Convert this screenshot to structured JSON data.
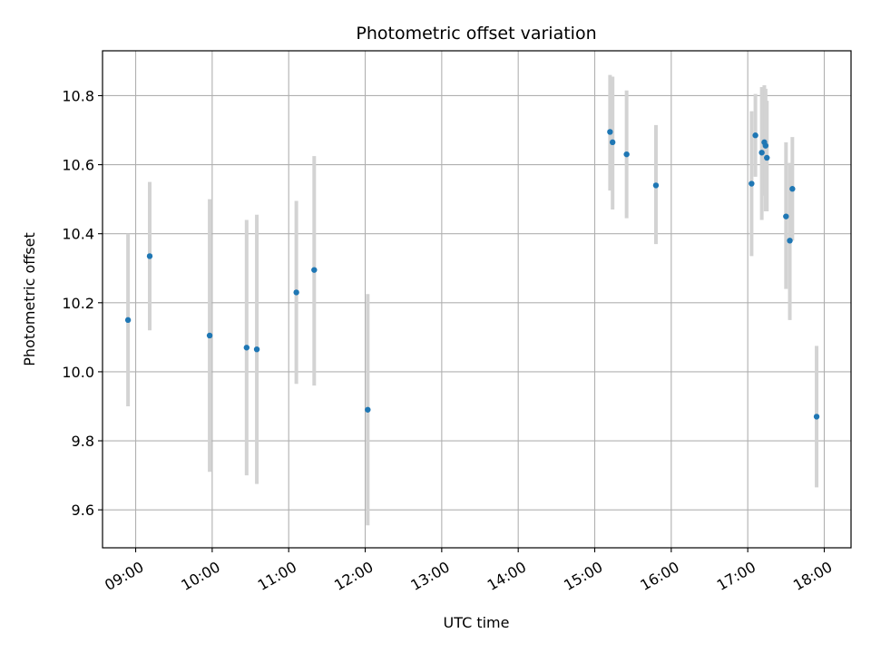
{
  "chart_data": {
    "type": "scatter",
    "title": "Photometric offset variation",
    "xlabel": "UTC time",
    "ylabel": "Photometric offset",
    "xlim": [
      "08:34",
      "18:21"
    ],
    "ylim": [
      9.49,
      10.93
    ],
    "grid": true,
    "x_ticks": [
      "09:00",
      "10:00",
      "11:00",
      "12:00",
      "13:00",
      "14:00",
      "15:00",
      "16:00",
      "17:00",
      "18:00"
    ],
    "y_ticks": [
      "9.6",
      "9.8",
      "10.0",
      "10.2",
      "10.4",
      "10.6",
      "10.8"
    ],
    "colors": {
      "points": "#1f77b4",
      "errorbars": "#d3d3d3",
      "grid": "#b0b0b0"
    },
    "points": [
      {
        "x": "08:54",
        "y": 10.15,
        "err": [
          9.9,
          10.4
        ]
      },
      {
        "x": "09:11",
        "y": 10.335,
        "err": [
          10.12,
          10.55
        ]
      },
      {
        "x": "09:58",
        "y": 10.105,
        "err": [
          9.71,
          10.5
        ]
      },
      {
        "x": "10:27",
        "y": 10.07,
        "err": [
          9.7,
          10.44
        ]
      },
      {
        "x": "10:35",
        "y": 10.065,
        "err": [
          9.675,
          10.455
        ]
      },
      {
        "x": "11:06",
        "y": 10.23,
        "err": [
          9.965,
          10.495
        ]
      },
      {
        "x": "11:20",
        "y": 10.295,
        "err": [
          9.96,
          10.625
        ]
      },
      {
        "x": "12:02",
        "y": 9.89,
        "err": [
          9.555,
          10.225
        ]
      },
      {
        "x": "15:12",
        "y": 10.695,
        "err": [
          10.525,
          10.86
        ]
      },
      {
        "x": "15:14",
        "y": 10.665,
        "err": [
          10.47,
          10.855
        ]
      },
      {
        "x": "15:25",
        "y": 10.63,
        "err": [
          10.445,
          10.815
        ]
      },
      {
        "x": "15:48",
        "y": 10.54,
        "err": [
          10.37,
          10.715
        ]
      },
      {
        "x": "17:03",
        "y": 10.545,
        "err": [
          10.335,
          10.755
        ]
      },
      {
        "x": "17:06",
        "y": 10.685,
        "err": [
          10.565,
          10.805
        ]
      },
      {
        "x": "17:11",
        "y": 10.635,
        "err": [
          10.44,
          10.825
        ]
      },
      {
        "x": "17:13",
        "y": 10.665,
        "err": [
          10.51,
          10.83
        ]
      },
      {
        "x": "17:14",
        "y": 10.655,
        "err": [
          10.465,
          10.82
        ]
      },
      {
        "x": "17:15",
        "y": 10.62,
        "err": [
          10.465,
          10.785
        ]
      },
      {
        "x": "17:30",
        "y": 10.45,
        "err": [
          10.24,
          10.665
        ]
      },
      {
        "x": "17:33",
        "y": 10.38,
        "err": [
          10.15,
          10.605
        ]
      },
      {
        "x": "17:35",
        "y": 10.53,
        "err": [
          10.38,
          10.68
        ]
      },
      {
        "x": "17:54",
        "y": 9.87,
        "err": [
          9.665,
          10.075
        ]
      }
    ]
  }
}
